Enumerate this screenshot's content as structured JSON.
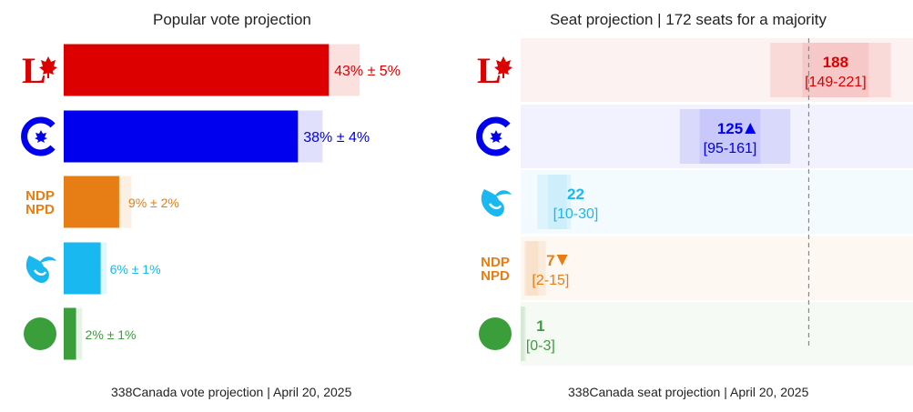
{
  "vote_panel": {
    "title": "Popular vote projection",
    "footer": "338Canada vote projection | April 20, 2025"
  },
  "seat_panel": {
    "title": "Seat projection | 172 seats for a majority",
    "footer": "338Canada seat projection | April 20, 2025"
  },
  "parties": {
    "lpc": {
      "logo": "liberal-logo-icon",
      "color": "#dd0000"
    },
    "cpc": {
      "logo": "conservative-logo-icon",
      "color": "#0000ee"
    },
    "ndp": {
      "logo": "ndp-logo-icon",
      "logo_text": [
        "NDP",
        "NPD"
      ],
      "color": "#e67e15"
    },
    "bq": {
      "logo": "bloc-logo-icon",
      "color": "#1ab8f0"
    },
    "gpc": {
      "logo": "green-logo-icon",
      "color": "#3a9e3a"
    }
  },
  "chart_data": [
    {
      "type": "bar",
      "title": "Popular vote projection",
      "categories": [
        "lpc",
        "cpc",
        "ndp",
        "bq",
        "gpc"
      ],
      "values": [
        43,
        38,
        9,
        6,
        2
      ],
      "margins": [
        5,
        4,
        2,
        1,
        1
      ],
      "labels": [
        "43% ± 5%",
        "38% ± 4%",
        "9% ± 2%",
        "6% ± 1%",
        "2% ± 1%"
      ],
      "xlim": [
        0,
        50
      ],
      "grid": false
    },
    {
      "type": "bar",
      "title": "Seat projection | 172 seats for a majority",
      "categories": [
        "lpc",
        "cpc",
        "bq",
        "ndp",
        "gpc"
      ],
      "values": [
        188,
        125,
        22,
        7,
        1
      ],
      "ranges": [
        [
          149,
          221
        ],
        [
          95,
          161
        ],
        [
          10,
          30
        ],
        [
          2,
          15
        ],
        [
          0,
          3
        ]
      ],
      "value_labels": [
        "188",
        "125",
        "22",
        "7",
        "1"
      ],
      "range_labels": [
        "[149-221]",
        "[95-161]",
        "[10-30]",
        "[2-15]",
        "[0-3]"
      ],
      "trend": [
        "",
        "up",
        "",
        "down",
        ""
      ],
      "majority": 172,
      "xlim": [
        0,
        240
      ],
      "grid": false
    }
  ]
}
